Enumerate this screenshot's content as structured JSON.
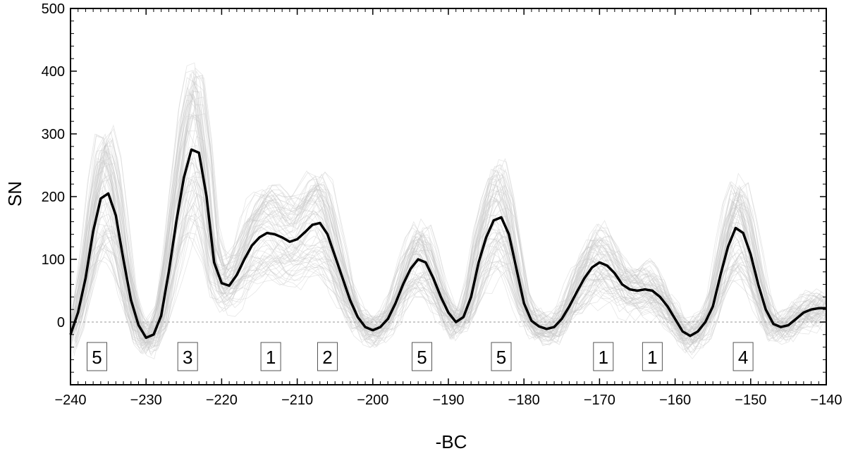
{
  "chart_data": {
    "type": "line",
    "title": "",
    "xlabel": "-BC",
    "ylabel": "SN",
    "xlim": [
      -240,
      -140
    ],
    "ylim": [
      -100,
      500
    ],
    "x_tick_labels": [
      "−240",
      "−230",
      "−220",
      "−210",
      "−200",
      "−190",
      "−180",
      "−170",
      "−160",
      "−150",
      "−140"
    ],
    "x_tick_values": [
      -240,
      -230,
      -220,
      -210,
      -200,
      -190,
      -180,
      -170,
      -160,
      -150,
      -140
    ],
    "y_tick_labels": [
      "0",
      "100",
      "200",
      "300",
      "400",
      "500"
    ],
    "y_tick_values": [
      0,
      100,
      200,
      300,
      400,
      500
    ],
    "zero_line": true,
    "grid": false,
    "colors": {
      "mean": "#000000",
      "ensemble": "#c8c8c8",
      "zero_line": "#9a9a9a",
      "box_border": "#555555"
    },
    "series": [
      {
        "role": "ensemble-mean",
        "x": [
          -240,
          -239,
          -238,
          -237,
          -236,
          -235,
          -234,
          -233,
          -232,
          -231,
          -230,
          -229,
          -228,
          -227,
          -226,
          -225,
          -224,
          -223,
          -222,
          -221,
          -220,
          -219,
          -218,
          -217,
          -216,
          -215,
          -214,
          -213,
          -212,
          -211,
          -210,
          -209,
          -208,
          -207,
          -206,
          -205,
          -204,
          -203,
          -202,
          -201,
          -200,
          -199,
          -198,
          -197,
          -196,
          -195,
          -194,
          -193,
          -192,
          -191,
          -190,
          -189,
          -188,
          -187,
          -186,
          -185,
          -184,
          -183,
          -182,
          -181,
          -180,
          -179,
          -178,
          -177,
          -176,
          -175,
          -174,
          -173,
          -172,
          -171,
          -170,
          -169,
          -168,
          -167,
          -166,
          -165,
          -164,
          -163,
          -162,
          -161,
          -160,
          -159,
          -158,
          -157,
          -156,
          -155,
          -154,
          -153,
          -152,
          -151,
          -150,
          -149,
          -148,
          -147,
          -146,
          -145,
          -144,
          -143,
          -142,
          -141,
          -140
        ],
        "y": [
          -20,
          15,
          70,
          145,
          197,
          205,
          170,
          100,
          35,
          -5,
          -25,
          -20,
          10,
          80,
          160,
          230,
          275,
          270,
          200,
          95,
          62,
          58,
          75,
          100,
          122,
          135,
          142,
          140,
          135,
          128,
          132,
          143,
          155,
          158,
          140,
          105,
          70,
          35,
          8,
          -8,
          -13,
          -8,
          5,
          30,
          60,
          85,
          100,
          95,
          70,
          40,
          15,
          0,
          8,
          40,
          95,
          135,
          162,
          167,
          140,
          85,
          30,
          2,
          -7,
          -11,
          -8,
          5,
          25,
          48,
          70,
          87,
          95,
          90,
          78,
          60,
          52,
          50,
          52,
          50,
          40,
          25,
          5,
          -15,
          -22,
          -15,
          0,
          25,
          75,
          120,
          150,
          142,
          108,
          60,
          20,
          -3,
          -8,
          -5,
          5,
          15,
          20,
          22,
          22
        ]
      }
    ],
    "annotations": [
      {
        "label": "5",
        "x": -236.5
      },
      {
        "label": "3",
        "x": -224.5
      },
      {
        "label": "1",
        "x": -213.5
      },
      {
        "label": "2",
        "x": -206.0
      },
      {
        "label": "5",
        "x": -193.5
      },
      {
        "label": "5",
        "x": -183.0
      },
      {
        "label": "1",
        "x": -169.5
      },
      {
        "label": "1",
        "x": -163.0
      },
      {
        "label": "4",
        "x": -151.0
      }
    ]
  }
}
